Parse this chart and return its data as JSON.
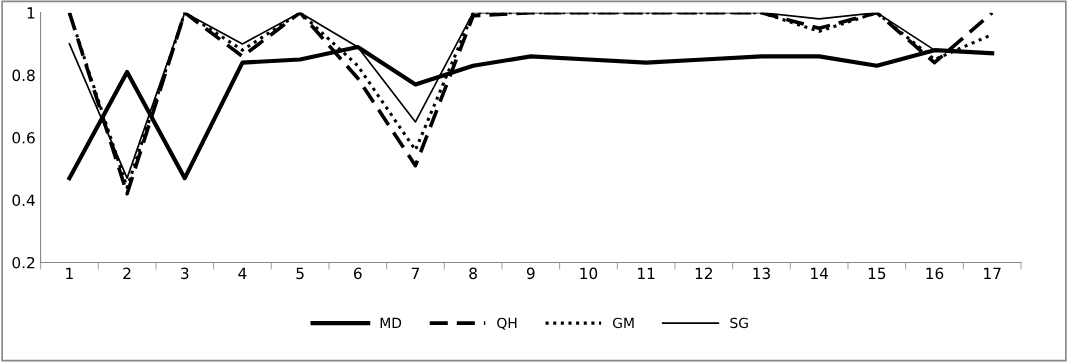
{
  "chart_data": {
    "type": "line",
    "categories": [
      "1",
      "2",
      "3",
      "4",
      "5",
      "6",
      "7",
      "8",
      "9",
      "10",
      "11",
      "12",
      "13",
      "14",
      "15",
      "16",
      "17"
    ],
    "ylim": [
      0.2,
      1
    ],
    "yticks": [
      0.2,
      0.4,
      0.6,
      0.8,
      1
    ],
    "grid": false,
    "legend": "bottom",
    "marker": "none",
    "series": [
      {
        "name": "MD",
        "color": "#000000",
        "line_style": "solid",
        "values": [
          0.47,
          0.81,
          0.47,
          0.84,
          0.85,
          0.89,
          0.77,
          0.83,
          0.86,
          0.85,
          0.84,
          0.85,
          0.86,
          0.86,
          0.83,
          0.88,
          0.87
        ]
      },
      {
        "name": "QH",
        "color": "#000000",
        "line_style": "dashed",
        "values": [
          1,
          0.42,
          1,
          0.86,
          1,
          0.79,
          0.51,
          0.99,
          1,
          1,
          1,
          1,
          1,
          0.95,
          1,
          0.84,
          1
        ]
      },
      {
        "name": "GM",
        "color": "#000000",
        "line_style": "dotted",
        "values": [
          1,
          0.44,
          1,
          0.88,
          1,
          0.83,
          0.56,
          1,
          1,
          1,
          1,
          1,
          1,
          0.94,
          1,
          0.85,
          0.93
        ]
      },
      {
        "name": "SG",
        "color": "#000000",
        "line_style": "solid",
        "values": [
          0.9,
          0.47,
          1,
          0.9,
          1,
          0.89,
          0.65,
          1,
          1,
          1,
          1,
          1,
          1,
          0.98,
          1,
          0.88,
          0.87
        ]
      }
    ]
  }
}
